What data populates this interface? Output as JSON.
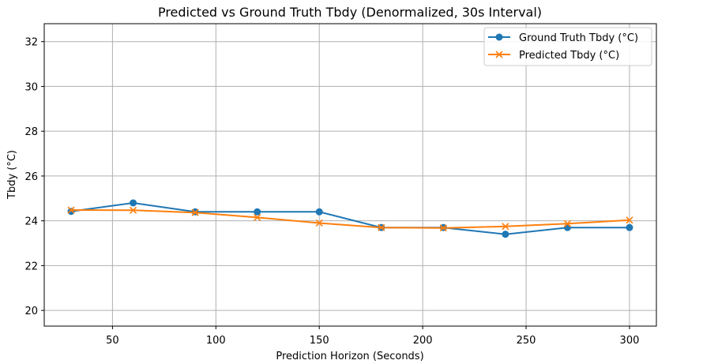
{
  "chart_data": {
    "type": "line",
    "title": "Predicted vs Ground Truth Tbdy (Denormalized, 30s Interval)",
    "xlabel": "Prediction Horizon (Seconds)",
    "ylabel": "Tbdy (°C)",
    "xlim": [
      17,
      313
    ],
    "ylim": [
      19.3,
      32.8
    ],
    "xticks": [
      50,
      100,
      150,
      200,
      250,
      300
    ],
    "yticks": [
      20,
      22,
      24,
      26,
      28,
      30,
      32
    ],
    "grid": true,
    "legend_position": "upper right",
    "x": [
      30,
      60,
      90,
      120,
      150,
      180,
      210,
      240,
      270,
      300
    ],
    "series": [
      {
        "name": "Ground Truth Tbdy (°C)",
        "marker": "circle",
        "color": "#1f77b4",
        "values": [
          24.42,
          24.8,
          24.4,
          24.4,
          24.4,
          23.7,
          23.7,
          23.4,
          23.7,
          23.7
        ]
      },
      {
        "name": "Predicted Tbdy (°C)",
        "marker": "x",
        "color": "#ff7f0e",
        "values": [
          24.48,
          24.47,
          24.37,
          24.15,
          23.9,
          23.7,
          23.68,
          23.75,
          23.87,
          24.03
        ]
      }
    ]
  }
}
